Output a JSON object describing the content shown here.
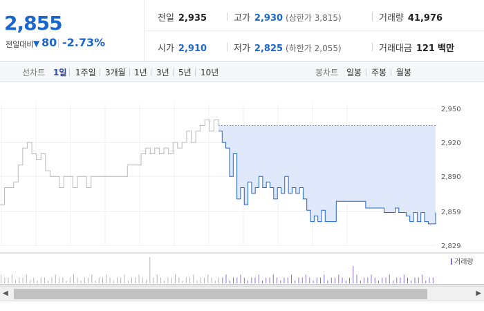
{
  "summary": {
    "current_price": "2,855",
    "change_label": "전일대비",
    "change_icon": "▼",
    "change_value": "80",
    "change_rate": "-2.73%",
    "prev_close": {
      "label": "전일",
      "value": "2,935"
    },
    "high": {
      "label": "고가",
      "value": "2,930",
      "sub": "(상한가 3,815)"
    },
    "volume": {
      "label": "거래량",
      "value": "41,976"
    },
    "open": {
      "label": "시가",
      "value": "2,910"
    },
    "low": {
      "label": "저가",
      "value": "2,825",
      "sub": "(하한가 2,055)"
    },
    "amount": {
      "label": "거래대금",
      "value": "121",
      "unit": "백만"
    }
  },
  "tabs": {
    "line_label": "선차트",
    "line_items": [
      "1일",
      "1주일",
      "3개월",
      "1년",
      "3년",
      "5년",
      "10년"
    ],
    "line_active": 0,
    "candle_label": "봉차트",
    "candle_items": [
      "일봉",
      "주봉",
      "월봉"
    ]
  },
  "chart_data": {
    "type": "line",
    "yticks": [
      "2,950",
      "2,920",
      "2,890",
      "2,859",
      "2,829"
    ],
    "ylim": [
      2829,
      2950
    ],
    "prev_close": 2935,
    "legend": "거래량",
    "series": [
      {
        "values": [
          2865,
          2880,
          2880,
          2885,
          2900,
          2915,
          2920,
          2910,
          2905,
          2910,
          2895,
          2890,
          2890,
          2880,
          2890,
          2890,
          2880,
          2890,
          2890,
          2880,
          2890,
          2890,
          2890,
          2890,
          2890,
          2890,
          2890,
          2890,
          2900,
          2900,
          2900,
          2910,
          2915,
          2910,
          2915,
          2910,
          2915,
          2910,
          2920,
          2915,
          2920,
          2930,
          2920,
          2930,
          2935,
          2940,
          2930,
          2940,
          2935
        ]
      },
      {
        "values": [
          2930,
          2920,
          2915,
          2890,
          2910,
          2870,
          2880,
          2865,
          2885,
          2875,
          2880,
          2890,
          2880,
          2885,
          2880,
          2870,
          2880,
          2875,
          2890,
          2875,
          2880,
          2875,
          2880,
          2870,
          2860,
          2850,
          2855,
          2850,
          2860,
          2850,
          2850,
          2850,
          2868,
          2868,
          2868,
          2868,
          2868,
          2868,
          2868,
          2868,
          2862,
          2862,
          2862,
          2862,
          2862,
          2858,
          2858,
          2858,
          2862,
          2858,
          2858,
          2855,
          2850,
          2858,
          2850,
          2858,
          2850,
          2848,
          2848,
          2858
        ]
      }
    ],
    "volume": [
      3,
      2,
      2,
      3,
      1,
      2,
      2,
      3,
      1,
      2,
      1,
      2,
      2,
      1,
      2,
      3,
      2,
      2,
      1,
      2,
      3,
      2,
      1,
      2,
      2,
      3,
      1,
      2,
      2,
      3,
      2,
      1,
      2,
      2,
      3,
      1,
      2,
      2,
      3,
      2,
      1,
      9,
      2,
      3,
      2,
      1,
      2,
      2,
      3,
      2,
      1,
      2,
      2,
      3,
      1,
      2,
      2,
      3,
      2,
      1,
      2,
      2,
      3,
      1,
      2,
      2,
      3,
      2,
      1,
      2,
      2,
      3,
      1,
      2,
      2,
      3,
      2,
      1,
      2,
      2,
      3,
      1,
      2,
      2,
      3,
      2,
      1,
      2,
      2,
      3,
      1,
      2,
      2,
      3,
      2,
      1,
      2,
      6,
      3,
      1,
      2,
      2,
      3,
      2,
      1,
      2,
      2,
      3,
      1,
      2,
      2,
      3,
      2,
      1,
      2,
      2,
      3,
      1,
      2,
      2
    ]
  }
}
